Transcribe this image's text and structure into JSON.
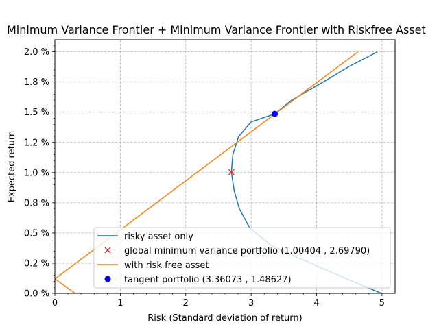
{
  "chart_data": {
    "type": "line",
    "title": "Minimum Variance Frontier + Minimum Variance Frontier with Riskfree Asset",
    "xlabel": "Risk (Standard deviation of return)",
    "ylabel": "Expected return",
    "xlim": [
      0,
      5.2
    ],
    "ylim": [
      0,
      2.1
    ],
    "x_ticks": [
      0,
      1,
      2,
      3,
      4,
      5
    ],
    "x_tick_labels": [
      "0",
      "1",
      "2",
      "3",
      "4",
      "5"
    ],
    "y_ticks": [
      0.0,
      0.25,
      0.5,
      0.75,
      1.0,
      1.25,
      1.5,
      1.75,
      2.0
    ],
    "y_tick_labels": [
      "0.0 %",
      "0.2 %",
      "0.5 %",
      "0.8 %",
      "1.0 %",
      "1.2 %",
      "1.5 %",
      "1.8 %",
      "2.0 %"
    ],
    "grid": true,
    "legend_position": "lower-center",
    "series": [
      {
        "name": "risky asset only",
        "kind": "line",
        "color": "#1f77b4",
        "points": [
          [
            4.99,
            0.0
          ],
          [
            4.55,
            0.1
          ],
          [
            4.12,
            0.2
          ],
          [
            3.7,
            0.3
          ],
          [
            3.3,
            0.4
          ],
          [
            2.98,
            0.54
          ],
          [
            2.82,
            0.7
          ],
          [
            2.74,
            0.85
          ],
          [
            2.6979,
            1.00404
          ],
          [
            2.72,
            1.15
          ],
          [
            2.81,
            1.3
          ],
          [
            3.0,
            1.42
          ],
          [
            3.36073,
            1.48627
          ],
          [
            3.62,
            1.6
          ],
          [
            4.1,
            1.75
          ],
          [
            4.5,
            1.88
          ],
          [
            4.93,
            2.0
          ]
        ]
      },
      {
        "name": "global minimum variance portfolio (1.00404 , 2.69790)",
        "kind": "marker-x",
        "color": "#d62728",
        "points": [
          [
            2.6979,
            1.00404
          ]
        ]
      },
      {
        "name": "with risk free asset",
        "kind": "line",
        "color": "#ff7f0e",
        "points": [
          [
            0.31,
            0.0
          ],
          [
            0.0,
            0.12
          ],
          [
            4.63,
            2.0
          ]
        ]
      },
      {
        "name": "tangent portfolio (3.36073 , 1.48627)",
        "kind": "marker-dot",
        "color": "#0000ff",
        "points": [
          [
            3.36073,
            1.48627
          ]
        ]
      }
    ]
  }
}
